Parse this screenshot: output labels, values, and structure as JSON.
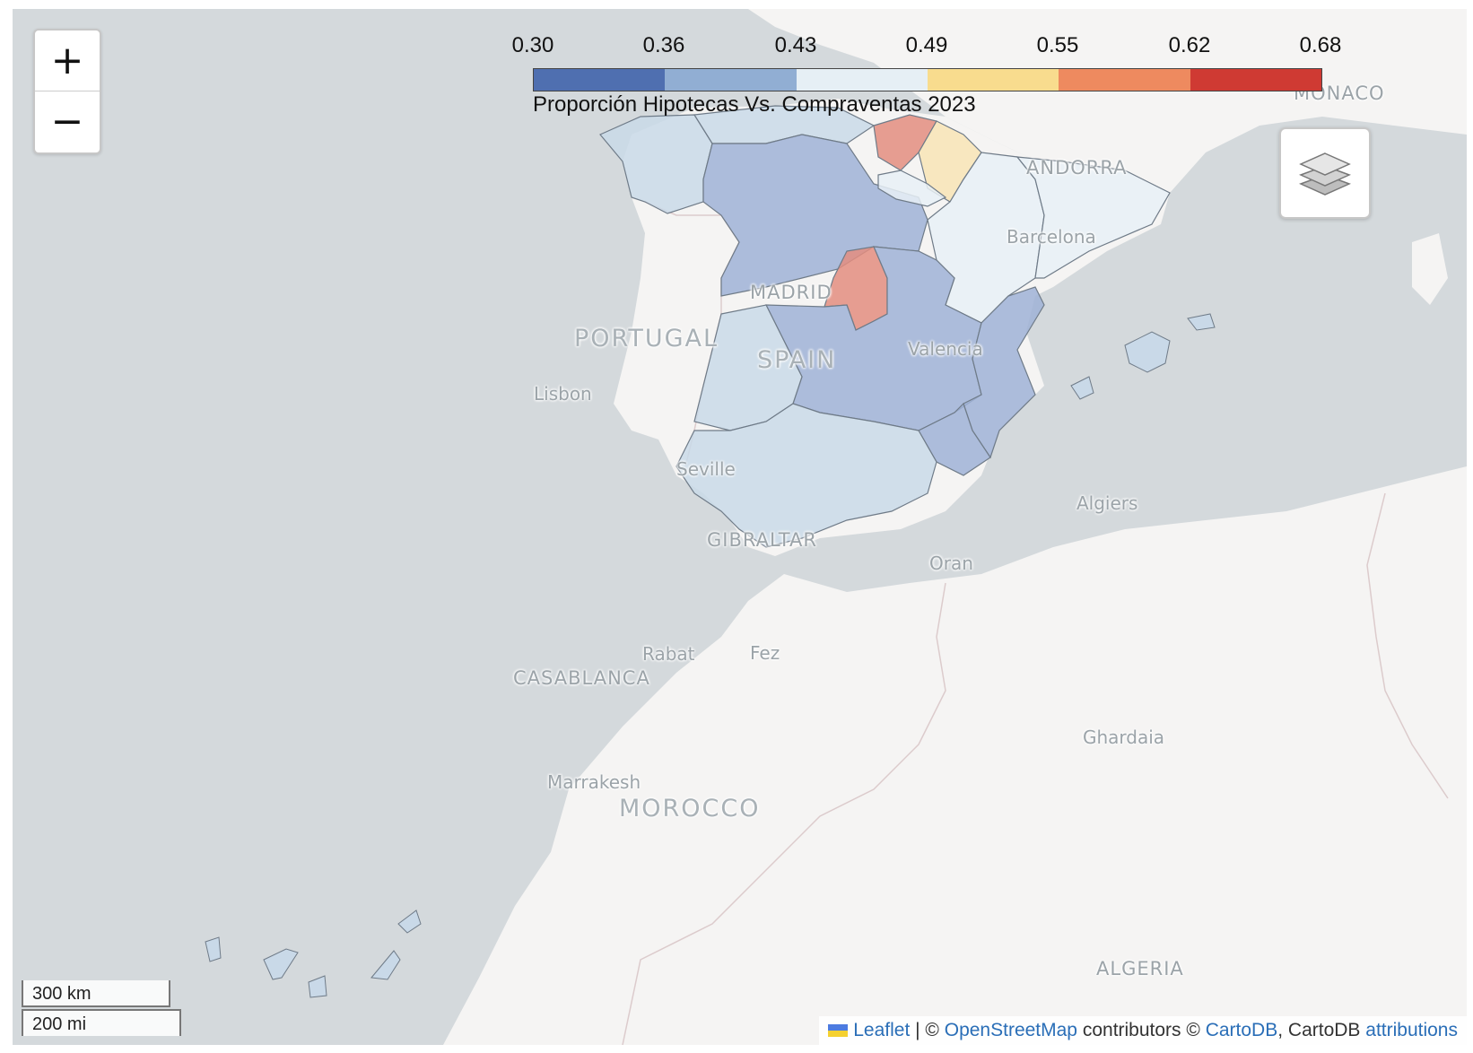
{
  "map": {
    "basemap": "CartoDB positron",
    "colors": {
      "sea": "#d4d9dc",
      "land": "#f5f4f3",
      "border": "#dccbcc",
      "region_stroke": "#6f7b88"
    }
  },
  "zoom": {
    "in_label": "+",
    "out_label": "−"
  },
  "layers_control": {
    "icon": "layers-icon"
  },
  "legend": {
    "ticks": [
      "0.30",
      "0.36",
      "0.43",
      "0.49",
      "0.55",
      "0.62",
      "0.68"
    ],
    "colors": [
      "#4f6fb0",
      "#91aed3",
      "#e6eff5",
      "#f8dc8e",
      "#ee8a5f",
      "#cf3a33"
    ],
    "caption": "Proporción Hipotecas Vs. Compraventas 2023"
  },
  "places": {
    "monaco": "MONACO",
    "andorra": "ANDORRA",
    "barcelona": "Barcelona",
    "madrid": "MADRID",
    "portugal": "PORTUGAL",
    "spain": "SPAIN",
    "valencia": "Valencia",
    "lisbon": "Lisbon",
    "seville": "Seville",
    "gibraltar": "GIBRALTAR",
    "algiers": "Algiers",
    "oran": "Oran",
    "rabat": "Rabat",
    "fez": "Fez",
    "casablanca": "CASABLANCA",
    "ghardaia": "Ghardaia",
    "marrakesh": "Marrakesh",
    "morocco": "MOROCCO",
    "algeria": "ALGERIA"
  },
  "scale": {
    "km": "300 km",
    "mi": "200 mi"
  },
  "attribution": {
    "leaflet": "Leaflet",
    "sep": " | © ",
    "osm": "OpenStreetMap",
    "contrib": " contributors © ",
    "cartodb": "CartoDB",
    "mid": ", CartoDB ",
    "attributions": "attributions"
  }
}
